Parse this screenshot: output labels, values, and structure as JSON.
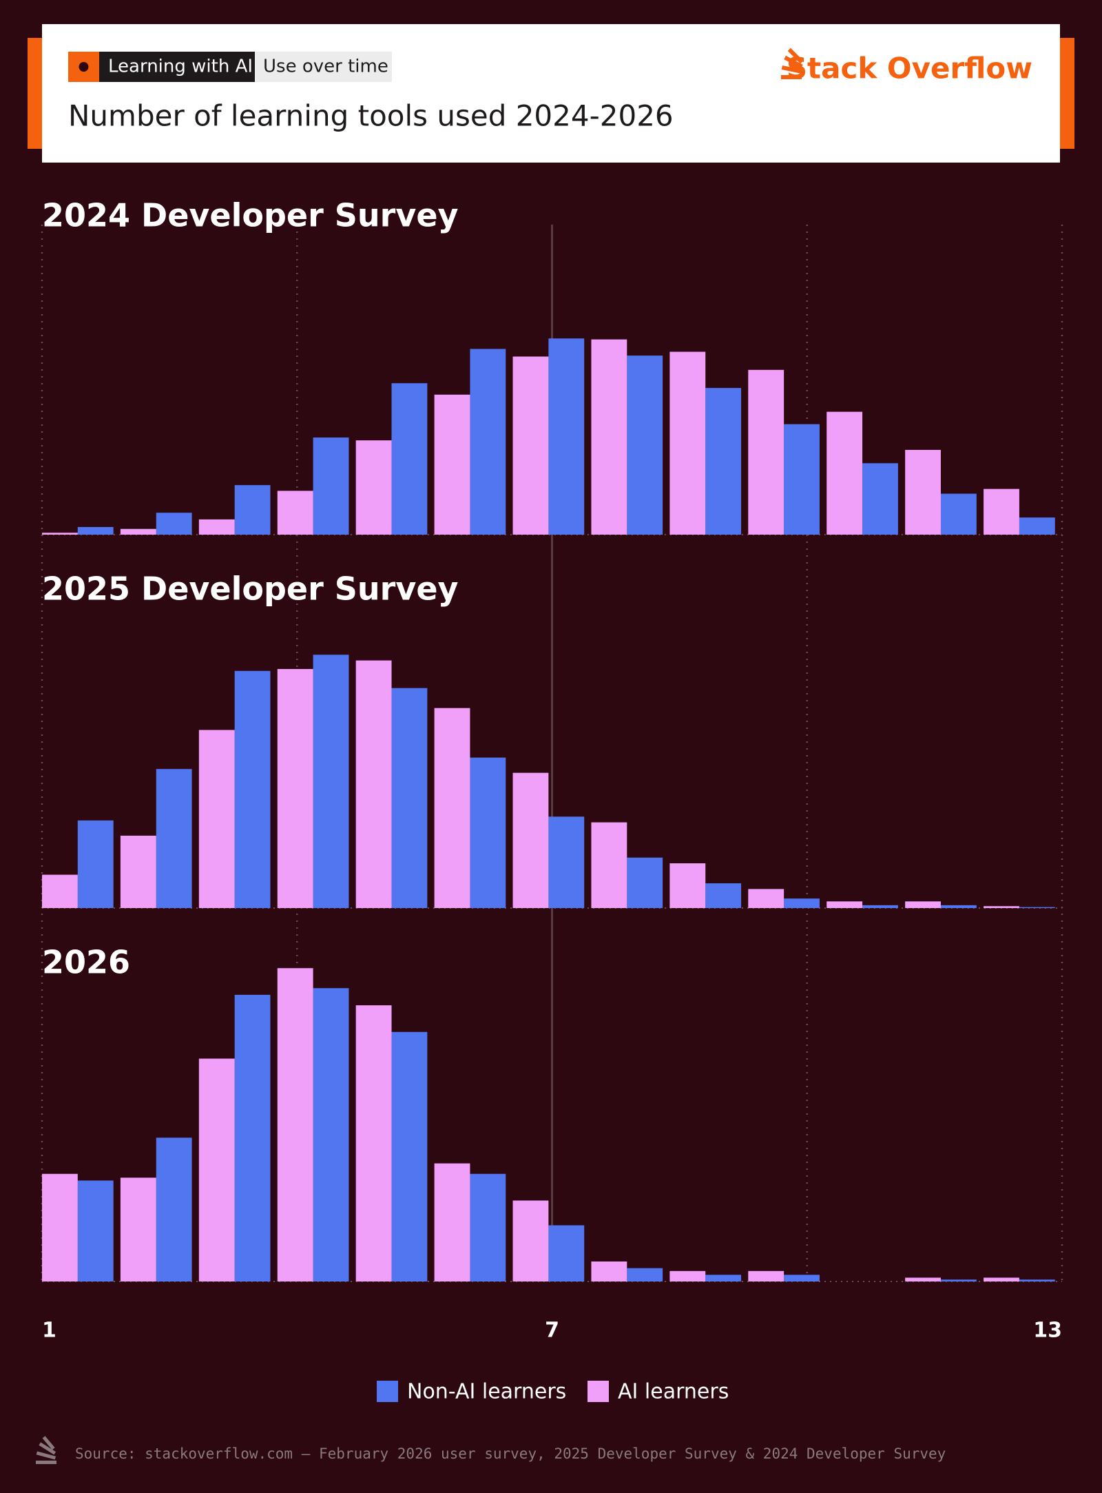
{
  "header": {
    "tags": [
      "Learning with AI",
      "Use over time"
    ],
    "title": "Number of learning tools used 2024-2026",
    "logo": "Stack Overflow"
  },
  "chart_data": {
    "type": "bar",
    "categories": [
      "1",
      null,
      null,
      null,
      null,
      null,
      "7",
      null,
      null,
      null,
      null,
      null,
      "13"
    ],
    "ylim": [
      0,
      340
    ],
    "series": [
      {
        "name": "Non-AI learners",
        "color": "#5276f0"
      },
      {
        "name": "AI learners",
        "color": "#f0a0f8"
      }
    ],
    "panels": [
      {
        "title": "2024 Developer Survey",
        "values": [
          [
            8,
            23,
            52,
            102,
            159,
            195,
            206,
            188,
            154,
            116,
            75,
            43,
            18
          ],
          [
            2,
            6,
            16,
            46,
            99,
            147,
            187,
            205,
            192,
            173,
            129,
            89,
            48
          ]
        ]
      },
      {
        "title": "2025 Developer Survey",
        "values": [
          [
            92,
            146,
            249,
            266,
            231,
            158,
            96,
            53,
            26,
            10,
            3,
            3,
            1
          ],
          [
            35,
            76,
            187,
            251,
            260,
            210,
            142,
            90,
            47,
            20,
            7,
            7,
            2
          ]
        ]
      },
      {
        "title": "2026",
        "values": [
          [
            106,
            151,
            301,
            308,
            262,
            113,
            59,
            14,
            7,
            7,
            0,
            2,
            2
          ],
          [
            113,
            109,
            234,
            329,
            290,
            124,
            85,
            21,
            11,
            11,
            0,
            4,
            4
          ]
        ]
      }
    ]
  },
  "source": "Source: stackoverflow.com – February 2026 user survey, 2025 Developer Survey & 2024 Developer Survey"
}
